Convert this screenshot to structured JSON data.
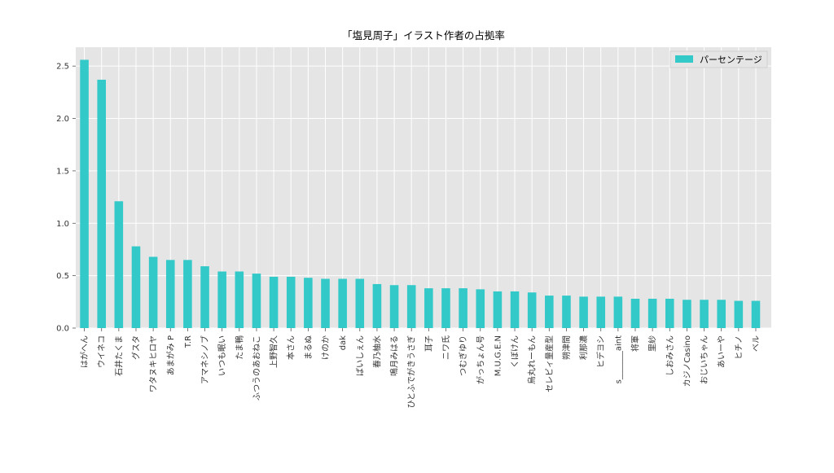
{
  "chart_data": {
    "type": "bar",
    "title": "「塩見周子」イラスト作者の占拠率",
    "xlabel": "",
    "ylabel": "",
    "ylim": [
      0,
      2.68
    ],
    "yticks": [
      "0.0",
      "0.5",
      "1.0",
      "1.5",
      "2.0",
      "2.5"
    ],
    "grid": true,
    "legend_position": "top-right",
    "colors": {
      "bar": "#33c9c9",
      "plot_bg": "#e5e5e5",
      "grid": "#ffffff"
    },
    "categories": [
      "はがへん",
      "ウイネコ",
      "石井たくま",
      "グスタ",
      "ワタヌキヒロヤ",
      "あまがみ P",
      "T.R",
      "アマネシノブ",
      "いつも眠い",
      "たま鴨",
      "ふつうのあおねこ",
      "上野智久",
      "本さん",
      "まるぬ",
      "けのか",
      "dak",
      "ばいしぇん",
      "春乃柚水",
      "鳴月みはる",
      "ひとふでがきうさぎ",
      "耳子",
      "ニワ氏",
      "つむぎゆり",
      "がっちょん号",
      "M.U.G.E.N",
      "くぼけん",
      "烏丸れーもん",
      "セレビィ量産型",
      "朔津間",
      "利那濃",
      "ヒデヨシ",
      "s_______aint",
      "将軍",
      "里紗",
      "しおみさん",
      "カジノCasino",
      "おじいちゃん",
      "あいーや",
      "ヒチノ",
      "ベル"
    ],
    "series": [
      {
        "name": "パーセンテージ",
        "values": [
          2.56,
          2.37,
          1.21,
          0.78,
          0.68,
          0.65,
          0.65,
          0.59,
          0.54,
          0.54,
          0.52,
          0.49,
          0.49,
          0.48,
          0.47,
          0.47,
          0.47,
          0.42,
          0.41,
          0.41,
          0.38,
          0.38,
          0.38,
          0.37,
          0.35,
          0.35,
          0.34,
          0.31,
          0.31,
          0.3,
          0.3,
          0.3,
          0.28,
          0.28,
          0.28,
          0.27,
          0.27,
          0.27,
          0.26,
          0.26
        ]
      }
    ]
  }
}
